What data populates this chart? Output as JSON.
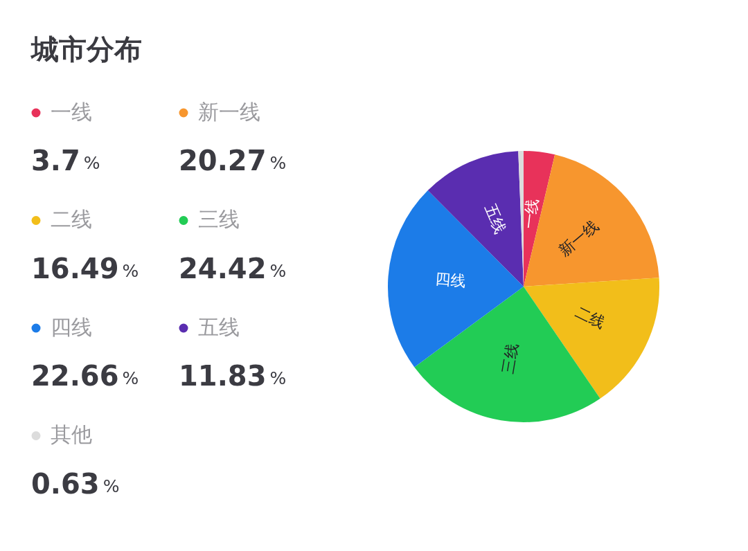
{
  "chart_data": {
    "type": "pie",
    "title": "城市分布",
    "categories": [
      "一线",
      "新一线",
      "二线",
      "三线",
      "四线",
      "五线",
      "其他"
    ],
    "values": [
      3.7,
      20.27,
      16.49,
      24.42,
      22.66,
      11.83,
      0.63
    ],
    "colors": [
      "#e8325a",
      "#f7962e",
      "#f2be1a",
      "#22cc55",
      "#1c7ce8",
      "#5a2db0",
      "#dcdcdc"
    ],
    "value_labels": [
      "3.7%",
      "20.27%",
      "16.49%",
      "24.42%",
      "22.66%",
      "11.83%",
      "0.63%"
    ],
    "legend": "left"
  }
}
